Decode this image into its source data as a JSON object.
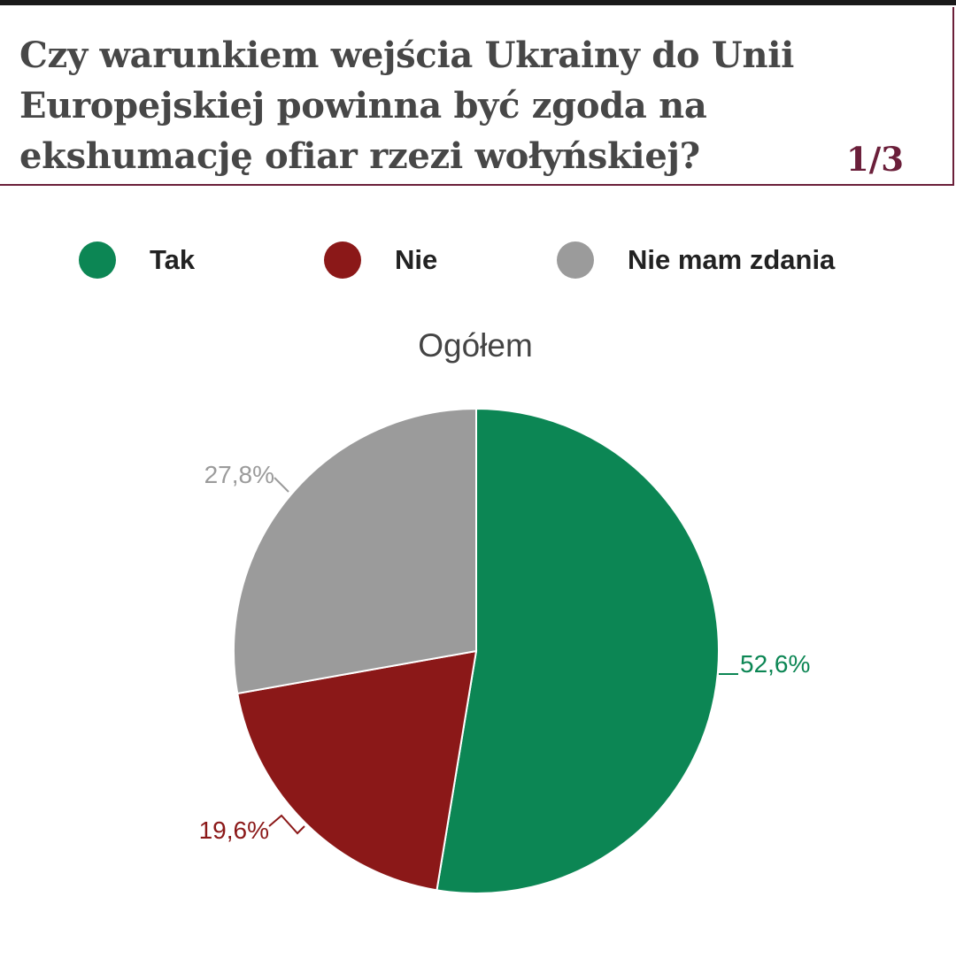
{
  "header": {
    "question": "Czy warunkiem wejścia Ukrainy do Unii Europejskiej powinna być zgoda na ekshumację ofiar rzezi wołyńskiej?",
    "page_indicator": "1/3"
  },
  "colors": {
    "tak": "#0c8654",
    "nie": "#8b1818",
    "nie_mam_zdania": "#9b9b9b",
    "accent": "#6b1f3a"
  },
  "chart_data": {
    "type": "pie",
    "title": "Ogółem",
    "legend_position": "top",
    "categories": [
      "Tak",
      "Nie",
      "Nie mam zdania"
    ],
    "values": [
      52.6,
      19.6,
      27.8
    ],
    "data_labels": [
      "52,6%",
      "19,6%",
      "27,8%"
    ],
    "colors": [
      "#0c8654",
      "#8b1818",
      "#9b9b9b"
    ]
  }
}
